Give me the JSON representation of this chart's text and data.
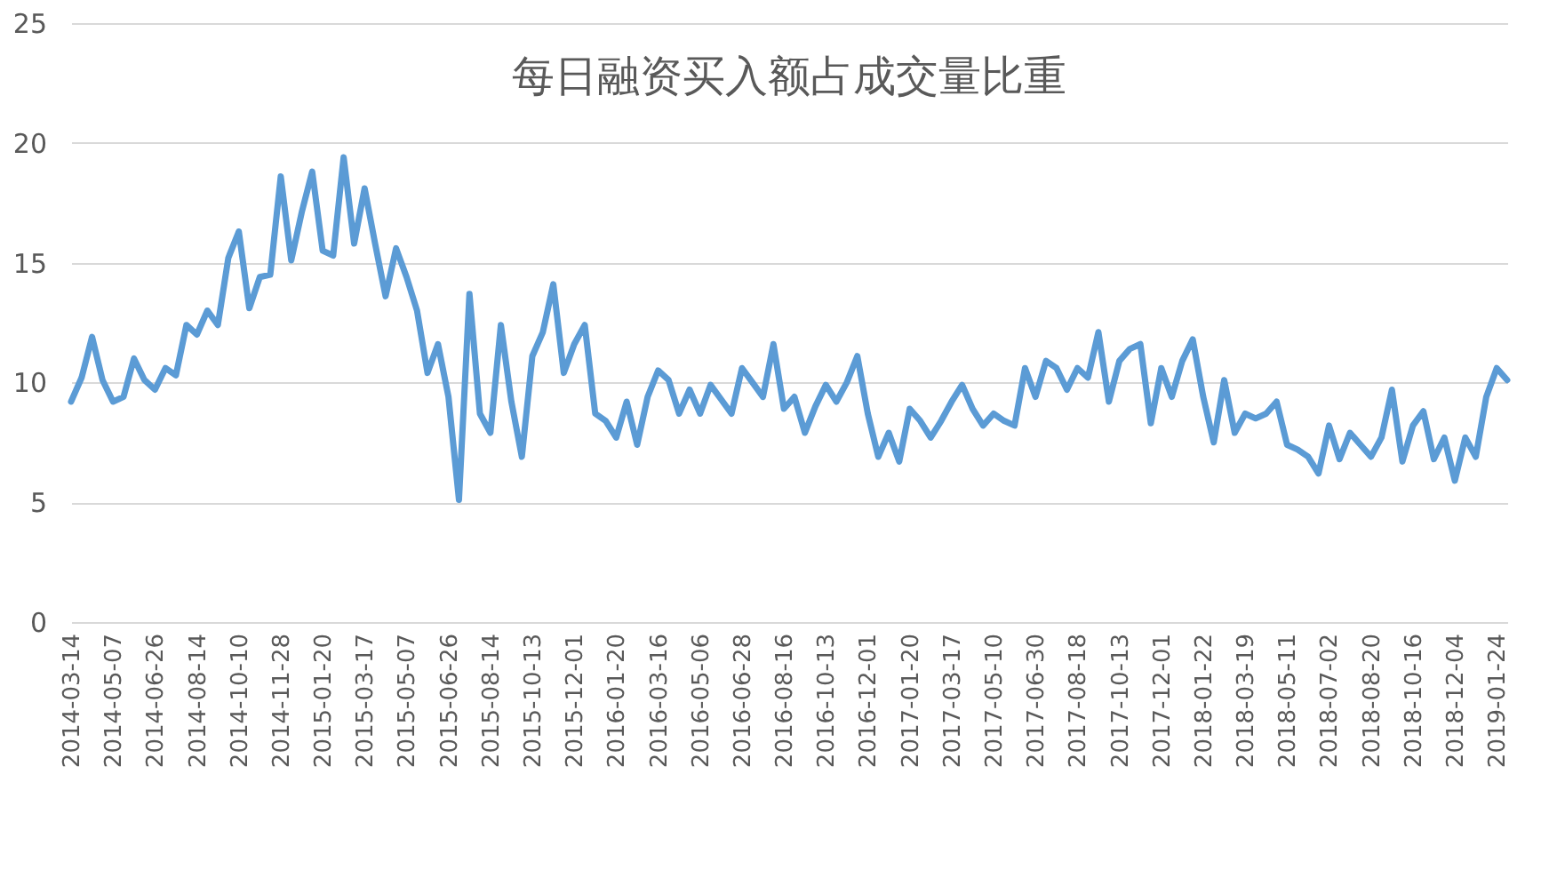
{
  "chart_data": {
    "type": "line",
    "title": "每日融资买入额占成交量比重",
    "categories": [
      "2014-03-14",
      null,
      null,
      null,
      "2014-05-07",
      null,
      null,
      null,
      "2014-06-26",
      null,
      null,
      null,
      "2014-08-14",
      null,
      null,
      null,
      "2014-10-10",
      null,
      null,
      null,
      "2014-11-28",
      null,
      null,
      null,
      "2015-01-20",
      null,
      null,
      null,
      "2015-03-17",
      null,
      null,
      null,
      "2015-05-07",
      null,
      null,
      null,
      "2015-06-26",
      null,
      null,
      null,
      "2015-08-14",
      null,
      null,
      null,
      "2015-10-13",
      null,
      null,
      null,
      "2015-12-01",
      null,
      null,
      null,
      "2016-01-20",
      null,
      null,
      null,
      "2016-03-16",
      null,
      null,
      null,
      "2016-05-06",
      null,
      null,
      null,
      "2016-06-28",
      null,
      null,
      null,
      "2016-08-16",
      null,
      null,
      null,
      "2016-10-13",
      null,
      null,
      null,
      "2016-12-01",
      null,
      null,
      null,
      "2017-01-20",
      null,
      null,
      null,
      "2017-03-17",
      null,
      null,
      null,
      "2017-05-10",
      null,
      null,
      null,
      "2017-06-30",
      null,
      null,
      null,
      "2017-08-18",
      null,
      null,
      null,
      "2017-10-13",
      null,
      null,
      null,
      "2017-12-01",
      null,
      null,
      null,
      "2018-01-22",
      null,
      null,
      null,
      "2018-03-19",
      null,
      null,
      null,
      "2018-05-11",
      null,
      null,
      null,
      "2018-07-02",
      null,
      null,
      null,
      "2018-08-20",
      null,
      null,
      null,
      "2018-10-16",
      null,
      null,
      null,
      "2018-12-04",
      null,
      null,
      null,
      "2019-01-24",
      null
    ],
    "series": [
      {
        "color": "#5b9bd5",
        "values": [
          9.2,
          10.2,
          11.9,
          10.1,
          9.2,
          9.4,
          11.0,
          10.1,
          9.7,
          10.6,
          10.3,
          12.4,
          12.0,
          13.0,
          12.4,
          15.2,
          16.3,
          13.1,
          14.4,
          14.5,
          18.6,
          15.1,
          17.1,
          18.8,
          15.5,
          15.3,
          19.4,
          15.8,
          18.1,
          15.8,
          13.6,
          15.6,
          14.4,
          13.0,
          10.4,
          11.6,
          9.4,
          5.1,
          13.7,
          8.7,
          7.9,
          12.4,
          9.2,
          6.9,
          11.1,
          12.1,
          14.1,
          10.4,
          11.6,
          12.4,
          8.7,
          8.4,
          7.7,
          9.2,
          7.4,
          9.4,
          10.5,
          10.1,
          8.7,
          9.7,
          8.7,
          9.9,
          9.3,
          8.7,
          10.6,
          10.0,
          9.4,
          11.6,
          8.9,
          9.4,
          7.9,
          9.0,
          9.9,
          9.2,
          10.0,
          11.1,
          8.7,
          6.9,
          7.9,
          6.7,
          8.9,
          8.4,
          7.7,
          8.4,
          9.2,
          9.9,
          8.9,
          8.2,
          8.7,
          8.4,
          8.2,
          10.6,
          9.4,
          10.9,
          10.6,
          9.7,
          10.6,
          10.2,
          12.1,
          9.2,
          10.9,
          11.4,
          11.6,
          8.3,
          10.6,
          9.4,
          10.9,
          11.8,
          9.4,
          7.5,
          10.1,
          7.9,
          8.7,
          8.5,
          8.7,
          9.2,
          7.4,
          7.2,
          6.9,
          6.2,
          8.2,
          6.8,
          7.9,
          7.4,
          6.9,
          7.7,
          9.7,
          6.7,
          8.2,
          8.8,
          6.8,
          7.7,
          5.9,
          7.7,
          6.9,
          9.4,
          10.6,
          10.1
        ]
      }
    ],
    "ylim": [
      0,
      25
    ],
    "yticks": [
      0,
      5,
      10,
      15,
      20,
      25
    ],
    "grid": "y",
    "marker": "none"
  }
}
